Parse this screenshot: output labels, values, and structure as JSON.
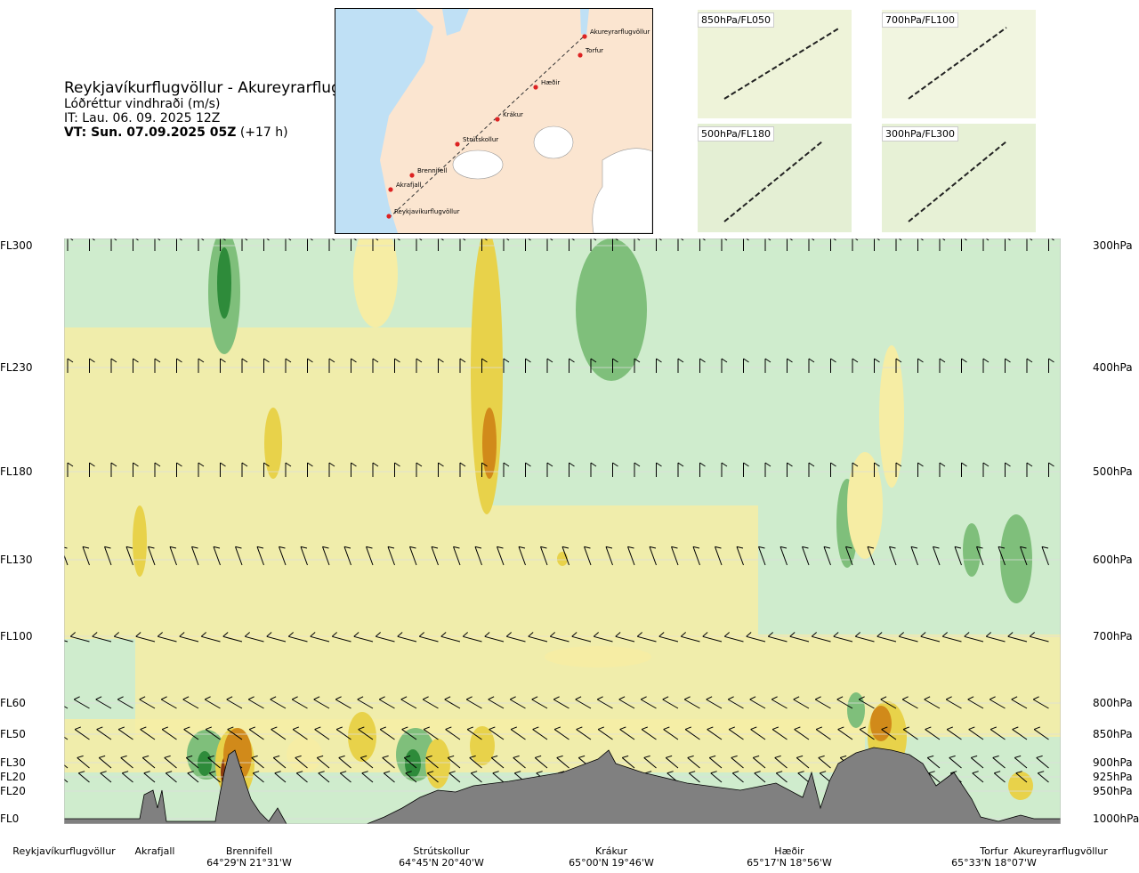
{
  "header": {
    "title": "Reykjavíkurflugvöllur - Akureyrarflugvöllur",
    "subtitle": "Lóðréttur vindhraði (m/s)",
    "issue_time": "IT: Lau. 06. 09. 2025 12Z",
    "valid_time": "VT: Sun. 07.09.2025 05Z",
    "lead": "(+17 h)"
  },
  "route_map": {
    "waypoints": [
      "Akureyrarflugvöllur",
      "Torfur",
      "Hæðir",
      "Krákur",
      "Strútskollur",
      "Brennifell",
      "Akrafjall",
      "Reykjavíkurflugvöllur"
    ]
  },
  "mini_maps": [
    {
      "label": "850hPa/FL050"
    },
    {
      "label": "700hPa/FL100"
    },
    {
      "label": "500hPa/FL180"
    },
    {
      "label": "300hPa/FL300"
    }
  ],
  "colors": {
    "strong_up": "#2e8b3a",
    "up": "#7fbf7b",
    "weak_up": "#c9e8c5",
    "neutral": "#f4fbee",
    "weak_down": "#f6eda4",
    "down": "#e8d24a",
    "strong_down": "#d18a1a",
    "extreme_down": "#8a3b12",
    "terrain": "#808080"
  },
  "chart_data": {
    "type": "cross-section",
    "title": "Reykjavíkurflugvöllur - Akureyrarflugvöllur",
    "variable": "Lóðréttur vindhraði (m/s)",
    "y_left_labels": [
      {
        "label": "FL300",
        "hpa": 300
      },
      {
        "label": "FL230",
        "hpa": 400
      },
      {
        "label": "FL180",
        "hpa": 500
      },
      {
        "label": "FL130",
        "hpa": 600
      },
      {
        "label": "FL100",
        "hpa": 700
      },
      {
        "label": "FL60",
        "hpa": 800
      },
      {
        "label": "FL50",
        "hpa": 850
      },
      {
        "label": "FL30",
        "hpa": 900
      },
      {
        "label": "FL20",
        "hpa": 925
      },
      {
        "label": "FL20",
        "hpa": 950
      },
      {
        "label": "FL0",
        "hpa": 1000
      }
    ],
    "y_right_labels": [
      "300hPa",
      "400hPa",
      "500hPa",
      "600hPa",
      "700hPa",
      "800hPa",
      "850hPa",
      "900hPa",
      "925hPa",
      "950hPa",
      "1000hPa"
    ],
    "x_places": [
      {
        "name": "Reykjavíkurflugvöllur",
        "coord": "",
        "frac": -0.0
      },
      {
        "name": "Akrafjall",
        "coord": "",
        "frac": 0.09
      },
      {
        "name": "Brennifell",
        "coord": "64°29'N 21°31'W",
        "frac": 0.19
      },
      {
        "name": "Strútskollur",
        "coord": "64°45'N 20°40'W",
        "frac": 0.38
      },
      {
        "name": "Krákur",
        "coord": "65°00'N 19°46'W",
        "frac": 0.57
      },
      {
        "name": "Hæðir",
        "coord": "65°17'N 18°56'W",
        "frac": 0.76
      },
      {
        "name": "Torfur",
        "coord": "65°33'N 18°07'W",
        "frac": 0.935
      },
      {
        "name": "Akureyrarflugvöllur",
        "coord": "",
        "frac": 1.0
      }
    ]
  }
}
